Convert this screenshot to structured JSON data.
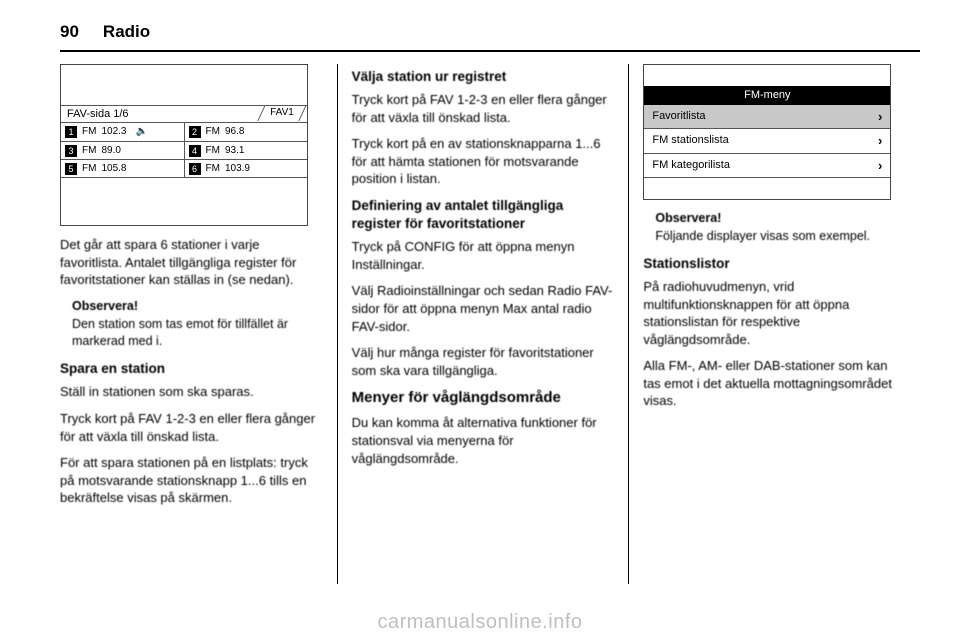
{
  "header": {
    "page_number": "90",
    "title": "Radio"
  },
  "watermark": "carmanualsonline.info",
  "screen1": {
    "title": "FAV-sida 1/6",
    "tab": "FAV1",
    "cells": [
      {
        "n": "1",
        "band": "FM",
        "freq": "102.3",
        "speaker": true
      },
      {
        "n": "2",
        "band": "FM",
        "freq": "96.8",
        "speaker": false
      },
      {
        "n": "3",
        "band": "FM",
        "freq": "89.0",
        "speaker": false
      },
      {
        "n": "4",
        "band": "FM",
        "freq": "93.1",
        "speaker": false
      },
      {
        "n": "5",
        "band": "FM",
        "freq": "105.8",
        "speaker": false
      },
      {
        "n": "6",
        "band": "FM",
        "freq": "103.9",
        "speaker": false
      }
    ]
  },
  "screen2": {
    "title": "FM-meny",
    "items": [
      {
        "label": "Favoritlista",
        "selected": true
      },
      {
        "label": "FM stationslista",
        "selected": false
      },
      {
        "label": "FM kategorilista",
        "selected": false
      }
    ]
  },
  "col1": {
    "p1": "Det går att spara 6 stationer i varje favoritlista. Antalet tillgängliga register för favoritstationer kan ställas in (se nedan).",
    "note_label": "Observera!",
    "note_text": "Den station som tas emot för tillfället är markerad med i.",
    "h1": "Spara en station",
    "p2": "Ställ in stationen som ska sparas.",
    "p3": "Tryck kort på FAV 1-2-3 en eller flera gånger för att växla till önskad lista.",
    "p4": "För att spara stationen på en listplats: tryck på motsvarande stationsknapp 1...6 tills en bekräftelse visas på skärmen."
  },
  "col2": {
    "h1": "Välja station ur registret",
    "p1": "Tryck kort på FAV 1-2-3 en eller flera gånger för att växla till önskad lista.",
    "p2": "Tryck kort på en av stationsknapparna 1...6 för att hämta stationen för motsvarande position i listan.",
    "h2": "Definiering av antalet tillgängliga register för favoritstationer",
    "p3": "Tryck på CONFIG för att öppna menyn Inställningar.",
    "p4": "Välj Radioinställningar och sedan Radio FAV-sidor för att öppna menyn Max antal radio FAV-sidor.",
    "p5": "Välj hur många register för favoritstationer som ska vara tillgängliga.",
    "h3": "Menyer för våglängdsområde",
    "p6": "Du kan komma åt alternativa funktioner för stationsval via menyerna för våglängdsområde."
  },
  "col3": {
    "note_label": "Observera!",
    "note_text": "Följande displayer visas som exempel.",
    "h1": "Stationslistor",
    "p1": "På radiohuvudmenyn, vrid multifunktionsknappen för att öppna stationslistan för respektive våglängdsområde.",
    "p2": "Alla FM-, AM- eller DAB-stationer som kan tas emot i det aktuella mottagningsområdet visas."
  }
}
